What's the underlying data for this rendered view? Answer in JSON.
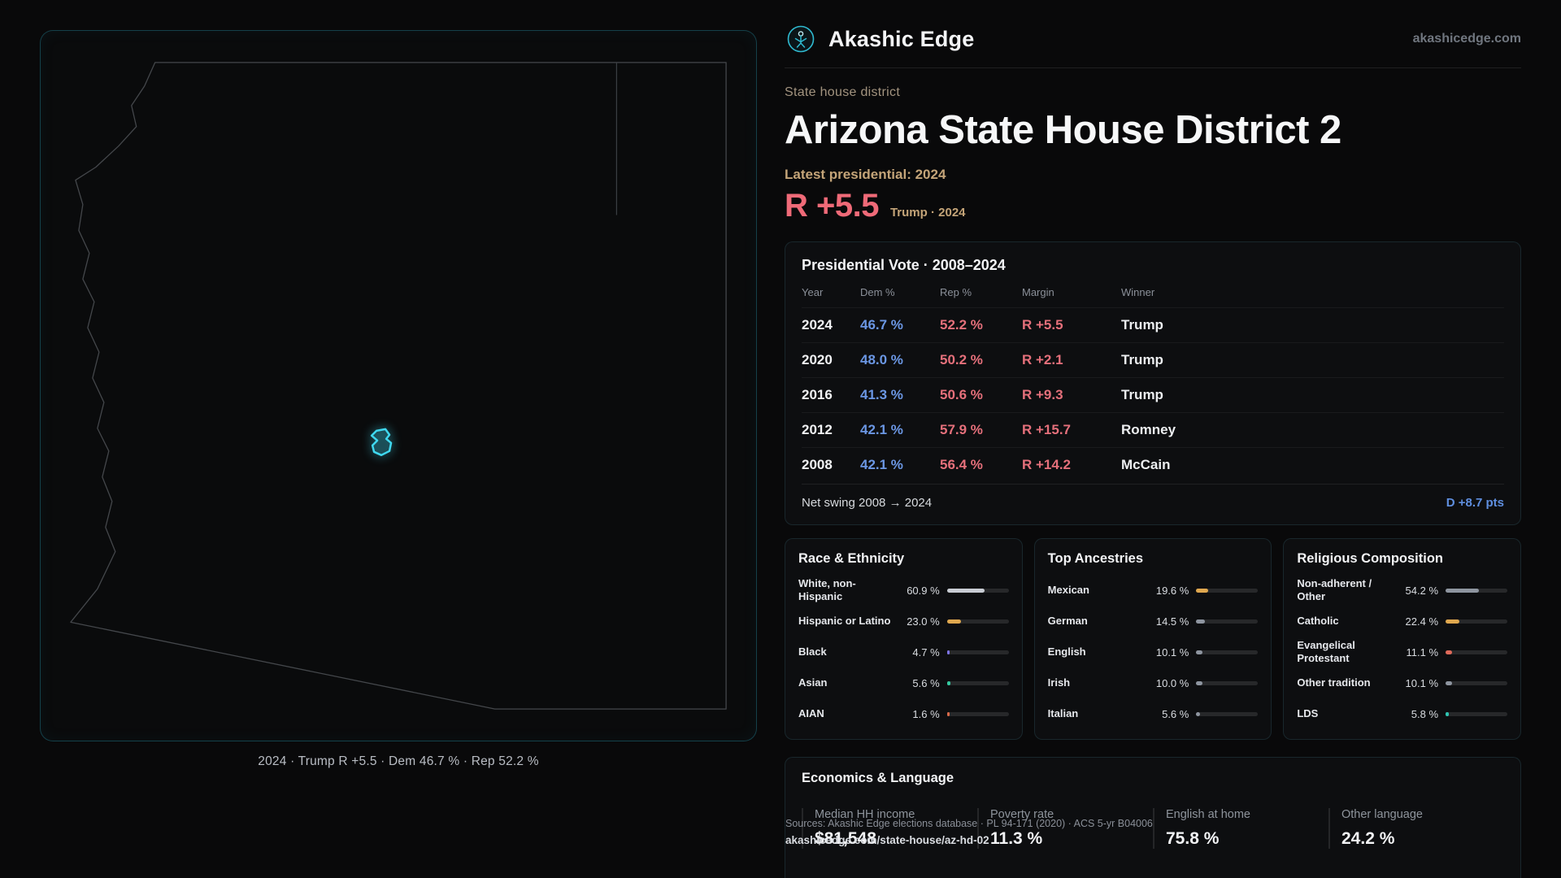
{
  "theme": {
    "accent_cyan": "#3fd8ef",
    "dem_blue": "#6b97e4",
    "rep_red": "#e5707b",
    "swing_blue": "#5f8fe0",
    "gold": "#c4a478",
    "margin_red": "#ef6a78"
  },
  "header": {
    "brand": "Akashic Edge",
    "domain": "akashicedge.com"
  },
  "hero": {
    "kicker": "State house district",
    "title": "Arizona State House District 2",
    "latest_label": "Latest presidential: 2024",
    "margin_big": "R +5.5",
    "margin_sub": "Trump · 2024"
  },
  "map": {
    "caption": "2024 · Trump R +5.5 · Dem 46.7 % · Rep 52.2 %",
    "highlight": "district-az-hd-02"
  },
  "vote_table": {
    "title": "Presidential Vote · 2008–2024",
    "columns": [
      "Year",
      "Dem %",
      "Rep %",
      "Margin",
      "Winner"
    ],
    "rows": [
      {
        "year": "2024",
        "dem": "46.7 %",
        "rep": "52.2 %",
        "margin": "R +5.5",
        "winner": "Trump"
      },
      {
        "year": "2020",
        "dem": "48.0 %",
        "rep": "50.2 %",
        "margin": "R +2.1",
        "winner": "Trump"
      },
      {
        "year": "2016",
        "dem": "41.3 %",
        "rep": "50.6 %",
        "margin": "R +9.3",
        "winner": "Trump"
      },
      {
        "year": "2012",
        "dem": "42.1 %",
        "rep": "57.9 %",
        "margin": "R +15.7",
        "winner": "Romney"
      },
      {
        "year": "2008",
        "dem": "42.1 %",
        "rep": "56.4 %",
        "margin": "R +14.2",
        "winner": "McCain"
      }
    ],
    "net_swing_label": "Net swing 2008 → 2024",
    "net_swing_value": "D +8.7 pts"
  },
  "demographics": [
    {
      "title": "Race & Ethnicity",
      "rows": [
        {
          "label": "White, non-Hispanic",
          "value": "60.9 %",
          "pct": 60.9,
          "color": "#c9cdd4"
        },
        {
          "label": "Hispanic or Latino",
          "value": "23.0 %",
          "pct": 23.0,
          "color": "#e0a84f"
        },
        {
          "label": "Black",
          "value": "4.7 %",
          "pct": 4.7,
          "color": "#7d74e8"
        },
        {
          "label": "Asian",
          "value": "5.6 %",
          "pct": 5.6,
          "color": "#35c9a0"
        },
        {
          "label": "AIAN",
          "value": "1.6 %",
          "pct": 1.6,
          "color": "#d96a4a"
        }
      ]
    },
    {
      "title": "Top Ancestries",
      "rows": [
        {
          "label": "Mexican",
          "value": "19.6 %",
          "pct": 19.6,
          "color": "#e0a84f"
        },
        {
          "label": "German",
          "value": "14.5 %",
          "pct": 14.5,
          "color": "#8e95a0"
        },
        {
          "label": "English",
          "value": "10.1 %",
          "pct": 10.1,
          "color": "#8e95a0"
        },
        {
          "label": "Irish",
          "value": "10.0 %",
          "pct": 10.0,
          "color": "#8e95a0"
        },
        {
          "label": "Italian",
          "value": "5.6 %",
          "pct": 5.6,
          "color": "#8e95a0"
        }
      ]
    },
    {
      "title": "Religious Composition",
      "rows": [
        {
          "label": "Non-adherent / Other",
          "value": "54.2 %",
          "pct": 54.2,
          "color": "#8e95a0"
        },
        {
          "label": "Catholic",
          "value": "22.4 %",
          "pct": 22.4,
          "color": "#e0a84f"
        },
        {
          "label": "Evangelical Protestant",
          "value": "11.1 %",
          "pct": 11.1,
          "color": "#e06a5a"
        },
        {
          "label": "Other tradition",
          "value": "10.1 %",
          "pct": 10.1,
          "color": "#8e95a0"
        },
        {
          "label": "LDS",
          "value": "5.8 %",
          "pct": 5.8,
          "color": "#2fc4b2"
        }
      ]
    }
  ],
  "economics": {
    "title": "Economics & Language",
    "stats": [
      {
        "label": "Median HH income",
        "value": "$81,548"
      },
      {
        "label": "Poverty rate",
        "value": "11.3 %"
      },
      {
        "label": "English at home",
        "value": "75.8 %"
      },
      {
        "label": "Other language",
        "value": "24.2 %"
      }
    ]
  },
  "footer": {
    "sources": "Sources: Akashic Edge elections database · PL 94-171 (2020) · ACS 5-yr B04006",
    "permalink": "akashicedge.com/state-house/az-hd-02"
  }
}
